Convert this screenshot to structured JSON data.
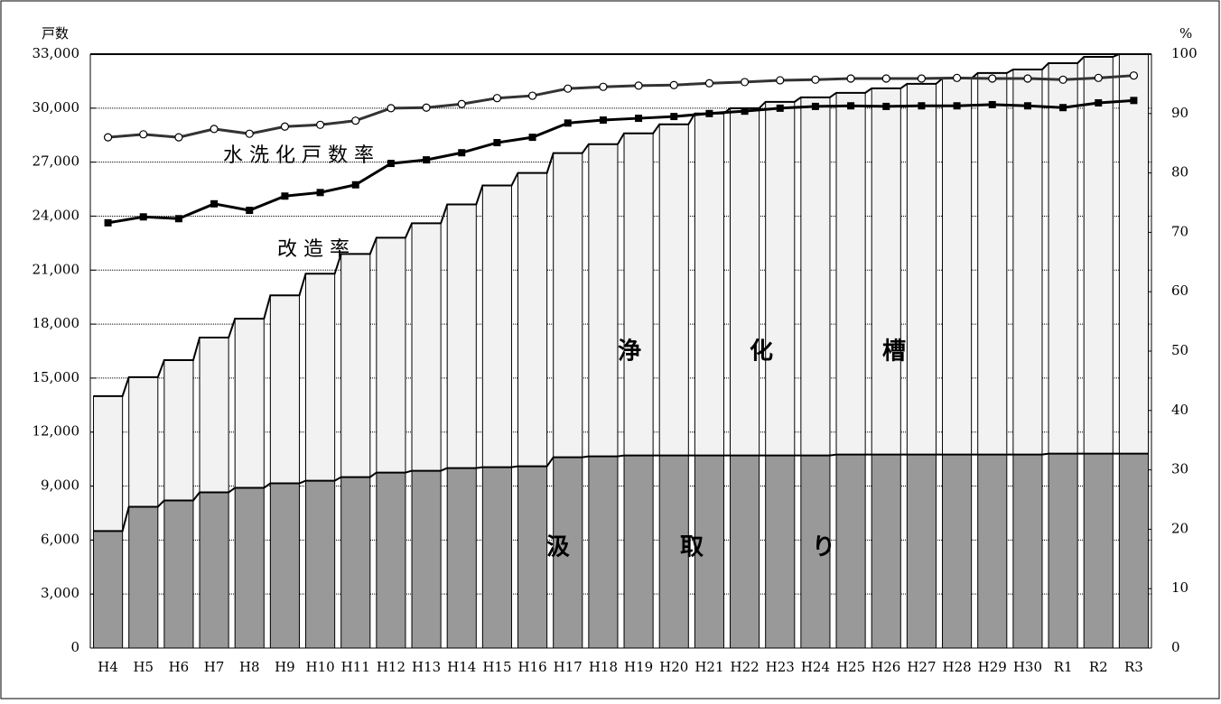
{
  "chart_data": {
    "type": "stacked-bar-line",
    "y_label": "戸数",
    "y2_label": "%",
    "categories": [
      "H4",
      "H5",
      "H6",
      "H7",
      "H8",
      "H9",
      "H10",
      "H11",
      "H12",
      "H13",
      "H14",
      "H15",
      "H16",
      "H17",
      "H18",
      "H19",
      "H20",
      "H21",
      "H22",
      "H23",
      "H24",
      "H25",
      "H26",
      "H27",
      "H28",
      "H29",
      "H30",
      "R1",
      "R2",
      "R3"
    ],
    "series": [
      {
        "color": "#999999",
        "values": [
          6500,
          7850,
          8200,
          8650,
          8900,
          9150,
          9300,
          9500,
          9750,
          9850,
          10000,
          10050,
          10100,
          10600,
          10650,
          10700,
          10700,
          10700,
          10700,
          10700,
          10700,
          10750,
          10750,
          10750,
          10750,
          10750,
          10750,
          10800,
          10800,
          10800
        ]
      },
      {
        "color": "#f2f2f2",
        "values": [
          7500,
          7200,
          7800,
          8600,
          9400,
          10450,
          11500,
          12400,
          13050,
          13750,
          14650,
          15650,
          16300,
          16900,
          17350,
          17900,
          18400,
          19000,
          19300,
          19650,
          19900,
          20100,
          20350,
          20600,
          20900,
          21200,
          21400,
          21700,
          22050,
          22200
        ]
      },
      {
        "name": "水 洗 化 戸 数 率",
        "axis": "y2",
        "marker": "circle",
        "color": "#333333",
        "values": [
          86.0,
          86.5,
          86.0,
          87.4,
          86.6,
          87.8,
          88.1,
          88.8,
          90.9,
          91.0,
          91.6,
          92.6,
          93.0,
          94.2,
          94.5,
          94.7,
          94.8,
          95.1,
          95.3,
          95.6,
          95.7,
          95.9,
          95.9,
          95.9,
          96.0,
          95.9,
          95.9,
          95.7,
          96.0,
          96.4
        ]
      },
      {
        "name": "改 造 率",
        "axis": "y2",
        "marker": "square",
        "color": "#000000",
        "values": [
          71.6,
          72.6,
          72.3,
          74.8,
          73.7,
          76.1,
          76.7,
          78.0,
          81.6,
          82.2,
          83.4,
          85.1,
          86.0,
          88.4,
          88.9,
          89.2,
          89.5,
          90.0,
          90.4,
          90.9,
          91.2,
          91.3,
          91.2,
          91.3,
          91.3,
          91.5,
          91.3,
          91.0,
          91.8,
          92.2
        ]
      }
    ],
    "annotations": [
      "浄",
      "化",
      "槽",
      "汲",
      "取",
      "り"
    ],
    "ylim": [
      0,
      33000
    ],
    "yticks": [
      0,
      {
        "value": 3000,
        "label": "3,000"
      },
      {
        "value": 6000,
        "label": "6,000"
      },
      {
        "value": 9000,
        "label": "9,000"
      },
      {
        "value": 12000,
        "label": "12,000"
      },
      {
        "value": 15000,
        "label": "15,000"
      },
      {
        "value": 18000,
        "label": "18,000"
      },
      {
        "value": 21000,
        "label": "21,000"
      },
      {
        "value": 24000,
        "label": "24,000"
      },
      {
        "value": 27000,
        "label": "27,000"
      },
      {
        "value": 30000,
        "label": "30,000"
      },
      {
        "value": 33000,
        "label": "33,000"
      }
    ],
    "y2lim": [
      0,
      100
    ],
    "y2ticks": [
      0,
      10,
      20,
      30,
      40,
      50,
      60,
      70,
      80,
      90,
      100
    ],
    "grid": true
  }
}
